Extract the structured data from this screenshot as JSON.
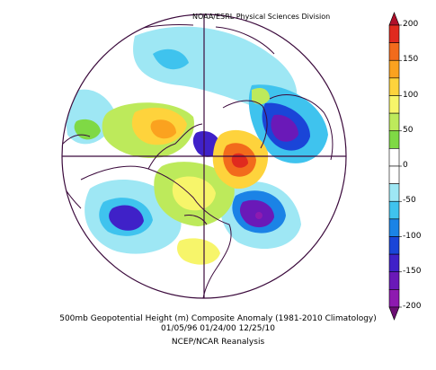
{
  "credit": "NOAA/ESRL Physical Sciences Division",
  "caption": {
    "line1": "500mb Geopotential Height (m) Composite Anomaly (1981-2010 Climatology)",
    "line2": "01/05/96 01/24/00 12/25/10",
    "line3": "NCEP/NCAR Reanalysis"
  },
  "colorbar": {
    "ticks": [
      "200",
      "150",
      "100",
      "50",
      "0",
      "-50",
      "-100",
      "-150",
      "-200"
    ],
    "bins": [
      {
        "color": "#b0102a"
      },
      {
        "color": "#e02a1e"
      },
      {
        "color": "#f26b1c"
      },
      {
        "color": "#fba21f"
      },
      {
        "color": "#fed33c"
      },
      {
        "color": "#f7f56a"
      },
      {
        "color": "#bdea5b"
      },
      {
        "color": "#7fd945"
      },
      {
        "color": "#ffffff"
      },
      {
        "color": "#ffffff"
      },
      {
        "color": "#9ee7f4"
      },
      {
        "color": "#3fc3ee"
      },
      {
        "color": "#1b83e6"
      },
      {
        "color": "#1a45d8"
      },
      {
        "color": "#3f21c8"
      },
      {
        "color": "#6a19b8"
      },
      {
        "color": "#8e1ab0"
      },
      {
        "color": "#6b0e73"
      }
    ]
  },
  "map": {
    "projection": "north-polar-stereographic",
    "anomaly_centers": [
      {
        "sign": "positive",
        "region": "Greenland / Baffin Bay",
        "color": "#f26b1c"
      },
      {
        "sign": "positive",
        "region": "Bering Sea / Alaska",
        "color": "#fba21f"
      },
      {
        "sign": "positive",
        "region": "North Pacific",
        "color": "#fed33c"
      },
      {
        "sign": "negative",
        "region": "Western Europe / North Atlantic",
        "color": "#3f21c8"
      },
      {
        "sign": "negative",
        "region": "East Asia",
        "color": "#6a19b8"
      },
      {
        "sign": "negative",
        "region": "Pole / Siberian Arctic",
        "color": "#3f21c8"
      }
    ]
  }
}
